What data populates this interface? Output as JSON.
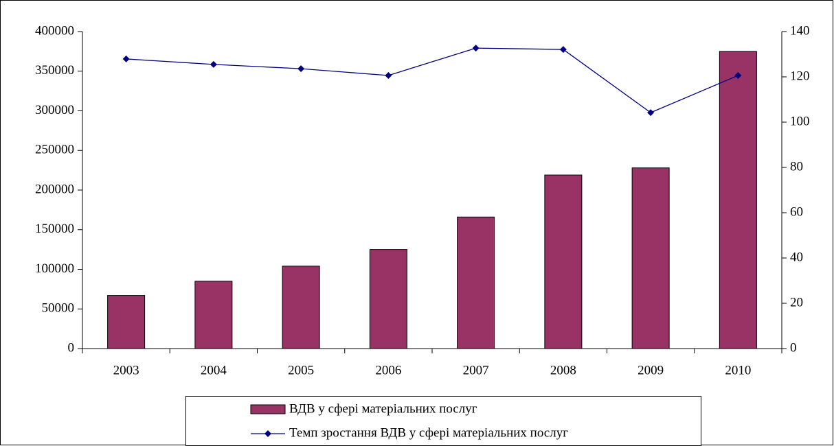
{
  "chart_data": {
    "type": "bar_line",
    "categories": [
      "2003",
      "2004",
      "2005",
      "2006",
      "2007",
      "2008",
      "2009",
      "2010"
    ],
    "series": [
      {
        "name": "ВДВ у сфері матеріальних послуг",
        "color": "#993366",
        "values": [
          67000,
          85000,
          104000,
          125000,
          166000,
          219000,
          228000,
          375000
        ]
      },
      {
        "name": "Темп зростання ВДВ у сфері матеріальних послуг",
        "color": "#000080",
        "axis": "y2",
        "values": [
          127.9,
          125.5,
          123.6,
          120.6,
          132.7,
          132.1,
          104.2,
          120.6
        ]
      }
    ],
    "ylim": [
      0,
      400000
    ],
    "yticks": [
      0,
      50000,
      100000,
      150000,
      200000,
      250000,
      300000,
      350000,
      400000
    ],
    "y2lim": [
      0,
      140
    ],
    "y2ticks": [
      0,
      20,
      40,
      60,
      80,
      100,
      120,
      140
    ]
  }
}
